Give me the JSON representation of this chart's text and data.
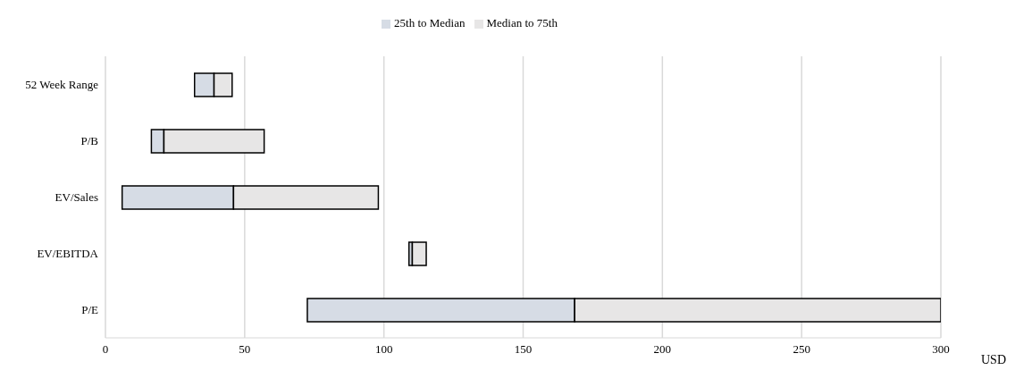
{
  "chart_data": {
    "type": "bar",
    "orientation": "horizontal",
    "xlabel": "USD",
    "categories": [
      "52 Week Range",
      "P/B",
      "EV/Sales",
      "EV/EBITDA",
      "P/E"
    ],
    "series": [
      {
        "name": "25th to Median",
        "color": "#d6dce5",
        "base": [
          32,
          16.5,
          6,
          109,
          72.5
        ],
        "values": [
          7,
          4.5,
          40,
          1.2,
          96
        ]
      },
      {
        "name": "Median to 75th",
        "color": "#e7e6e6",
        "base": [
          39,
          21,
          46,
          110.2,
          168.5
        ],
        "values": [
          6.5,
          36,
          52,
          5,
          131.5
        ]
      }
    ],
    "xlim": [
      0,
      300
    ],
    "xticks": [
      0,
      50,
      100,
      150,
      200,
      250,
      300
    ],
    "grid": "x",
    "legend": "top"
  }
}
